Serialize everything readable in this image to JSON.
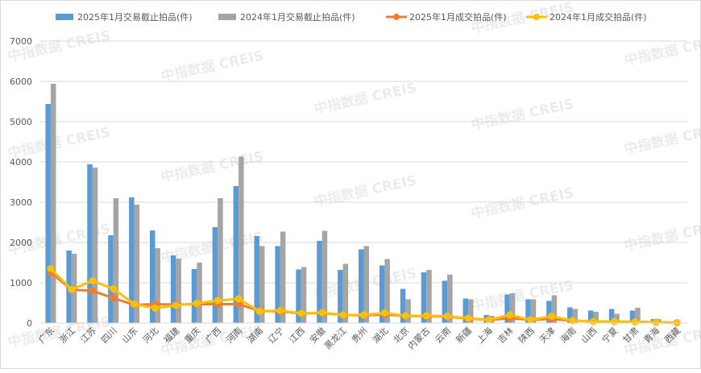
{
  "chart_data": {
    "type": "bar",
    "title": "",
    "xlabel": "",
    "ylabel": "",
    "ylim": [
      0,
      7000
    ],
    "yticks": [
      0,
      1000,
      2000,
      3000,
      4000,
      5000,
      6000,
      7000
    ],
    "grid": true,
    "legend_position": "top",
    "watermark": "中指数据 CREIS",
    "colors": {
      "blue": "#5b9bd5",
      "gray": "#a5a5a5",
      "orange": "#ed7d31",
      "yellow": "#ffc000"
    },
    "categories": [
      "广东",
      "浙江",
      "江苏",
      "四川",
      "山东",
      "河北",
      "福建",
      "重庆",
      "广西",
      "河南",
      "湖南",
      "辽宁",
      "江西",
      "安徽",
      "黑龙江",
      "贵州",
      "湖北",
      "北京",
      "内蒙古",
      "云南",
      "新疆",
      "上海",
      "吉林",
      "陕西",
      "天津",
      "海南",
      "山西",
      "宁夏",
      "甘肃",
      "青海",
      "西藏"
    ],
    "series": [
      {
        "name": "2025年1月交易截止拍品(件)",
        "kind": "bar",
        "color": "#5b9bd5",
        "values": [
          5440,
          1800,
          3940,
          2180,
          3120,
          2300,
          1680,
          1340,
          2380,
          3400,
          2160,
          1910,
          1330,
          2040,
          1320,
          1830,
          1430,
          850,
          1260,
          1050,
          610,
          200,
          710,
          590,
          550,
          390,
          310,
          350,
          310,
          100,
          0
        ]
      },
      {
        "name": "2024年1月交易截止拍品(件)",
        "kind": "bar",
        "color": "#a5a5a5",
        "values": [
          5940,
          1720,
          3860,
          3100,
          2940,
          1860,
          1600,
          1500,
          3100,
          4130,
          1910,
          2270,
          1390,
          2290,
          1470,
          1910,
          1590,
          590,
          1320,
          1200,
          590,
          180,
          740,
          590,
          690,
          350,
          280,
          230,
          380,
          100,
          0
        ]
      },
      {
        "name": "2025年1月成交拍品(件)",
        "kind": "line",
        "color": "#ed7d31",
        "values": [
          1250,
          830,
          800,
          620,
          450,
          470,
          460,
          470,
          470,
          470,
          300,
          290,
          240,
          250,
          200,
          190,
          210,
          180,
          170,
          160,
          110,
          80,
          120,
          80,
          100,
          60,
          40,
          40,
          30,
          20,
          10
        ]
      },
      {
        "name": "2024年1月成交拍品(件)",
        "kind": "line",
        "color": "#ffc000",
        "values": [
          1350,
          830,
          1050,
          850,
          470,
          370,
          440,
          490,
          560,
          600,
          290,
          310,
          240,
          260,
          200,
          200,
          250,
          180,
          180,
          170,
          120,
          80,
          200,
          80,
          170,
          60,
          40,
          40,
          30,
          20,
          10
        ]
      }
    ]
  }
}
